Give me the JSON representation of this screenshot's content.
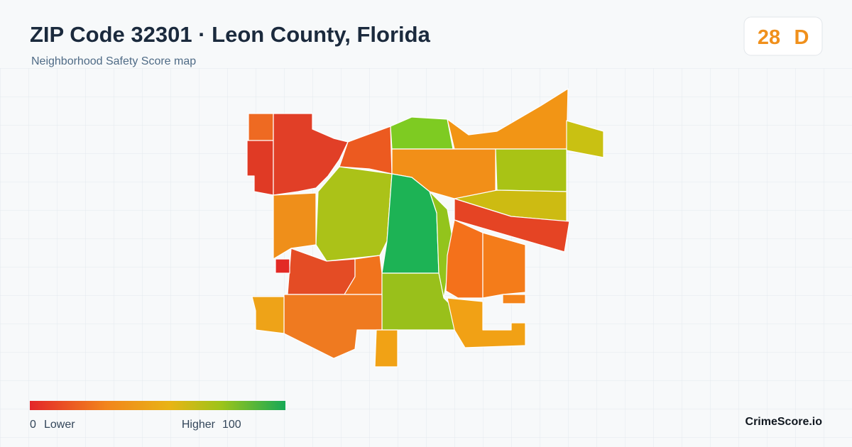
{
  "header": {
    "title": "ZIP Code 32301 · Leon County, Florida",
    "subtitle": "Neighborhood Safety Score map"
  },
  "score": {
    "value": 28,
    "grade": "D"
  },
  "legend": {
    "min": 0,
    "min_label": "Lower",
    "max_label": "Higher",
    "max": 100
  },
  "brand": "CrimeScore.io"
}
